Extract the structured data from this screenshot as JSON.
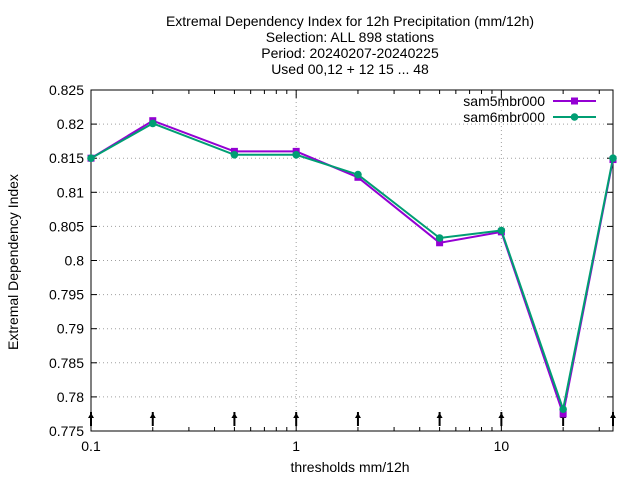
{
  "chart_data": {
    "type": "line",
    "title_lines": [
      "Extremal Dependency Index  for 12h Precipitation (mm/12h)",
      "Selection: ALL     898 stations",
      "Period: 20240207-20240225",
      "Used 00,12 + 12 15 ... 48"
    ],
    "xlabel": "thresholds mm/12h",
    "ylabel": "Extremal Dependency Index",
    "x_scale": "log",
    "xlim": [
      0.1,
      35
    ],
    "ylim": [
      0.775,
      0.825
    ],
    "x_ticks": [
      {
        "value": 0.1,
        "label": "0.1"
      },
      {
        "value": 1,
        "label": "1"
      },
      {
        "value": 10,
        "label": "10"
      }
    ],
    "y_ticks": [
      "0.775",
      "0.78",
      "0.785",
      "0.79",
      "0.795",
      "0.8",
      "0.805",
      "0.81",
      "0.815",
      "0.82",
      "0.825"
    ],
    "grid": true,
    "legend_position": "top-right",
    "x": [
      0.1,
      0.2,
      0.5,
      1,
      2,
      5,
      10,
      20,
      35
    ],
    "series": [
      {
        "name": "sam5mbr000",
        "color": "#9400d3",
        "values": [
          0.815,
          0.8205,
          0.816,
          0.816,
          0.8122,
          0.8026,
          0.8042,
          0.7775,
          0.8148
        ]
      },
      {
        "name": "sam6mbr000",
        "color": "#009e73",
        "values": [
          0.815,
          0.8201,
          0.8155,
          0.8155,
          0.8126,
          0.8033,
          0.8044,
          0.7782,
          0.815
        ]
      }
    ],
    "sample_markers_at": [
      0.1,
      0.2,
      0.5,
      1,
      2,
      5,
      10,
      20,
      35
    ]
  }
}
